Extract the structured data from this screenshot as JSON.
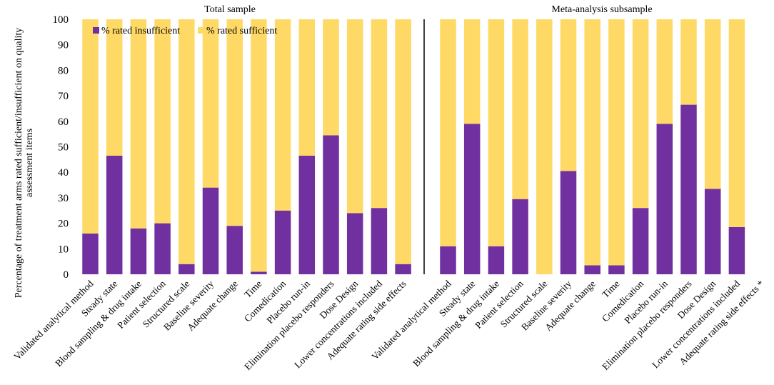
{
  "chart_data": {
    "type": "bar",
    "stacked": true,
    "ylabel": "Percentage of treatment arms rated sufficient/insufficient on quality assessment items",
    "ylabel_lines": [
      "Percentage of treatment arms rated sufficient/insufficient on quality",
      "assessment items"
    ],
    "ylim": [
      0,
      100
    ],
    "yticks": [
      0,
      10,
      20,
      30,
      40,
      50,
      60,
      70,
      80,
      90,
      100
    ],
    "legend": {
      "position": "top-left",
      "items": [
        {
          "label": "% rated insufficient",
          "color": "#7030a0"
        },
        {
          "label": "% rated sufficient",
          "color": "#ffd966"
        }
      ]
    },
    "panels": [
      {
        "title": "Total sample",
        "categories": [
          "Validated analytical method",
          "Steady state",
          "Blood sampling & drug intake",
          "Patient selection",
          "Structured scale",
          "Baseline severity",
          "Adequate change",
          "Time",
          "Comedication",
          "Placebo run-in",
          "Elimination placebo responders",
          "Dose Design",
          "Lower concentrations included",
          "Adequate rating side effects"
        ],
        "series": [
          {
            "name": "% rated insufficient",
            "values": [
              16,
              46.5,
              18,
              20,
              4,
              34,
              19,
              1,
              25,
              46.5,
              54.5,
              24,
              26,
              4
            ]
          },
          {
            "name": "% rated sufficient",
            "values": [
              84,
              53.5,
              82,
              80,
              96,
              66,
              81,
              99,
              75,
              53.5,
              45.5,
              76,
              74,
              96
            ]
          }
        ]
      },
      {
        "title": "Meta-analysis subsample",
        "categories": [
          "Validated analytical method",
          "Steady state",
          "Blood sampling & drug intake",
          "Patient selection",
          "Structured scale",
          "Baseline severity",
          "Adequate change",
          "Time",
          "Comedication",
          "Placebo run-in",
          "Elimination placebo responders",
          "Dose Design",
          "Lower concentrations included",
          "Adequate rating side effects *"
        ],
        "series": [
          {
            "name": "% rated insufficient",
            "values": [
              11,
              59,
              11,
              29.5,
              0,
              40.5,
              3.5,
              3.5,
              26,
              59,
              66.5,
              33.5,
              18.5,
              0
            ]
          },
          {
            "name": "% rated sufficient",
            "values": [
              89,
              41,
              89,
              70.5,
              100,
              59.5,
              96.5,
              96.5,
              74,
              41,
              33.5,
              66.5,
              81.5,
              0
            ]
          }
        ]
      }
    ],
    "colors": {
      "insufficient": "#7030a0",
      "sufficient": "#ffd966",
      "divider": "#000000"
    }
  }
}
